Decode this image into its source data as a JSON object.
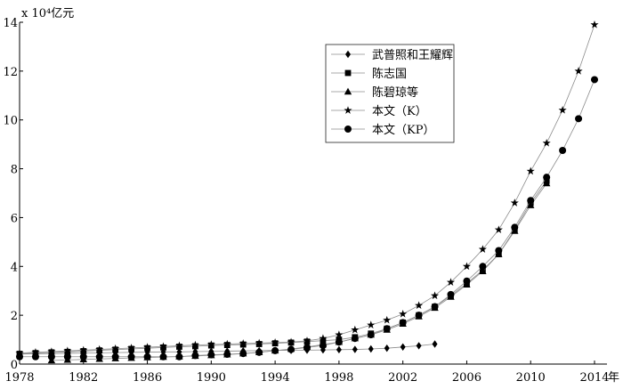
{
  "chart_data": {
    "type": "line",
    "title": "",
    "ylabel": "x 10⁴亿元",
    "xlabel": "年",
    "xlim": [
      1978,
      2014
    ],
    "ylim": [
      0,
      14
    ],
    "grid": false,
    "legend_position": "top-right",
    "x_ticks": [
      "1978",
      "1982",
      "1986",
      "1990",
      "1994",
      "1998",
      "2002",
      "2006",
      "2010",
      "2014"
    ],
    "y_ticks": [
      "0",
      "2",
      "4",
      "6",
      "8",
      "10",
      "12",
      "14"
    ],
    "series": [
      {
        "name": "武普照和王耀辉",
        "marker": "diamond",
        "x": [
          1978,
          1979,
          1980,
          1981,
          1982,
          1983,
          1984,
          1985,
          1986,
          1987,
          1988,
          1989,
          1990,
          1991,
          1992,
          1993,
          1994,
          1995,
          1996,
          1997,
          1998,
          1999,
          2000,
          2001,
          2002,
          2003,
          2004
        ],
        "values": [
          0.41,
          0.42,
          0.43,
          0.44,
          0.45,
          0.46,
          0.47,
          0.48,
          0.49,
          0.5,
          0.5,
          0.51,
          0.52,
          0.53,
          0.54,
          0.55,
          0.56,
          0.56,
          0.57,
          0.58,
          0.59,
          0.6,
          0.62,
          0.65,
          0.7,
          0.75,
          0.82
        ]
      },
      {
        "name": "陈志国",
        "marker": "square",
        "x": [
          1978,
          1979,
          1980,
          1981,
          1982,
          1983,
          1984,
          1985,
          1986,
          1987,
          1988,
          1989,
          1990,
          1991,
          1992,
          1993,
          1994,
          1995,
          1996,
          1997,
          1998,
          1999,
          2000,
          2001,
          2002,
          2003,
          2004,
          2005,
          2006,
          2007,
          2008,
          2009,
          2010,
          2011
        ],
        "values": [
          0.42,
          0.45,
          0.48,
          0.5,
          0.53,
          0.56,
          0.59,
          0.62,
          0.65,
          0.68,
          0.71,
          0.73,
          0.76,
          0.78,
          0.8,
          0.82,
          0.85,
          0.88,
          0.92,
          0.96,
          1.0,
          1.1,
          1.25,
          1.45,
          1.7,
          2.0,
          2.35,
          2.8,
          3.3,
          3.85,
          4.5,
          5.5,
          6.6,
          7.5
        ]
      },
      {
        "name": "陈碧琼等",
        "marker": "triangle",
        "x": [
          1980,
          1981,
          1982,
          1983,
          1984,
          1985,
          1986,
          1987,
          1988,
          1989,
          1990,
          1991,
          1992,
          1993,
          1994,
          1995,
          1996,
          1997,
          1998,
          1999,
          2000,
          2001,
          2002,
          2003,
          2004,
          2005,
          2006,
          2007,
          2008,
          2009,
          2010,
          2011
        ],
        "values": [
          0.15,
          0.17,
          0.19,
          0.21,
          0.23,
          0.25,
          0.27,
          0.29,
          0.31,
          0.33,
          0.36,
          0.39,
          0.43,
          0.48,
          0.55,
          0.62,
          0.7,
          0.8,
          0.9,
          1.05,
          1.2,
          1.4,
          1.65,
          1.95,
          2.3,
          2.75,
          3.25,
          3.8,
          4.5,
          5.45,
          6.5,
          7.4
        ]
      },
      {
        "name": "本文（K）",
        "marker": "star",
        "x": [
          1978,
          1979,
          1980,
          1981,
          1982,
          1983,
          1984,
          1985,
          1986,
          1987,
          1988,
          1989,
          1990,
          1991,
          1992,
          1993,
          1994,
          1995,
          1996,
          1997,
          1998,
          1999,
          2000,
          2001,
          2002,
          2003,
          2004,
          2005,
          2006,
          2007,
          2008,
          2009,
          2010,
          2011,
          2012,
          2013,
          2014
        ],
        "values": [
          0.45,
          0.48,
          0.51,
          0.54,
          0.57,
          0.6,
          0.63,
          0.66,
          0.69,
          0.72,
          0.75,
          0.78,
          0.8,
          0.82,
          0.84,
          0.86,
          0.88,
          0.9,
          0.95,
          1.05,
          1.2,
          1.4,
          1.6,
          1.8,
          2.05,
          2.4,
          2.8,
          3.35,
          4.0,
          4.7,
          5.5,
          6.6,
          7.9,
          9.05,
          10.4,
          12.0,
          13.9
        ]
      },
      {
        "name": "本文（KP）",
        "marker": "circle",
        "x": [
          1978,
          1979,
          1980,
          1981,
          1982,
          1983,
          1984,
          1985,
          1986,
          1987,
          1988,
          1989,
          1990,
          1991,
          1992,
          1993,
          1994,
          1995,
          1996,
          1997,
          1998,
          1999,
          2000,
          2001,
          2002,
          2003,
          2004,
          2005,
          2006,
          2007,
          2008,
          2009,
          2010,
          2011,
          2012,
          2013,
          2014
        ],
        "values": [
          0.3,
          0.3,
          0.3,
          0.3,
          0.3,
          0.3,
          0.3,
          0.3,
          0.3,
          0.3,
          0.3,
          0.35,
          0.38,
          0.4,
          0.43,
          0.48,
          0.55,
          0.6,
          0.68,
          0.76,
          0.9,
          1.05,
          1.2,
          1.45,
          1.7,
          2.0,
          2.35,
          2.85,
          3.4,
          4.0,
          4.65,
          5.6,
          6.7,
          7.65,
          8.75,
          10.05,
          11.65
        ]
      }
    ]
  }
}
